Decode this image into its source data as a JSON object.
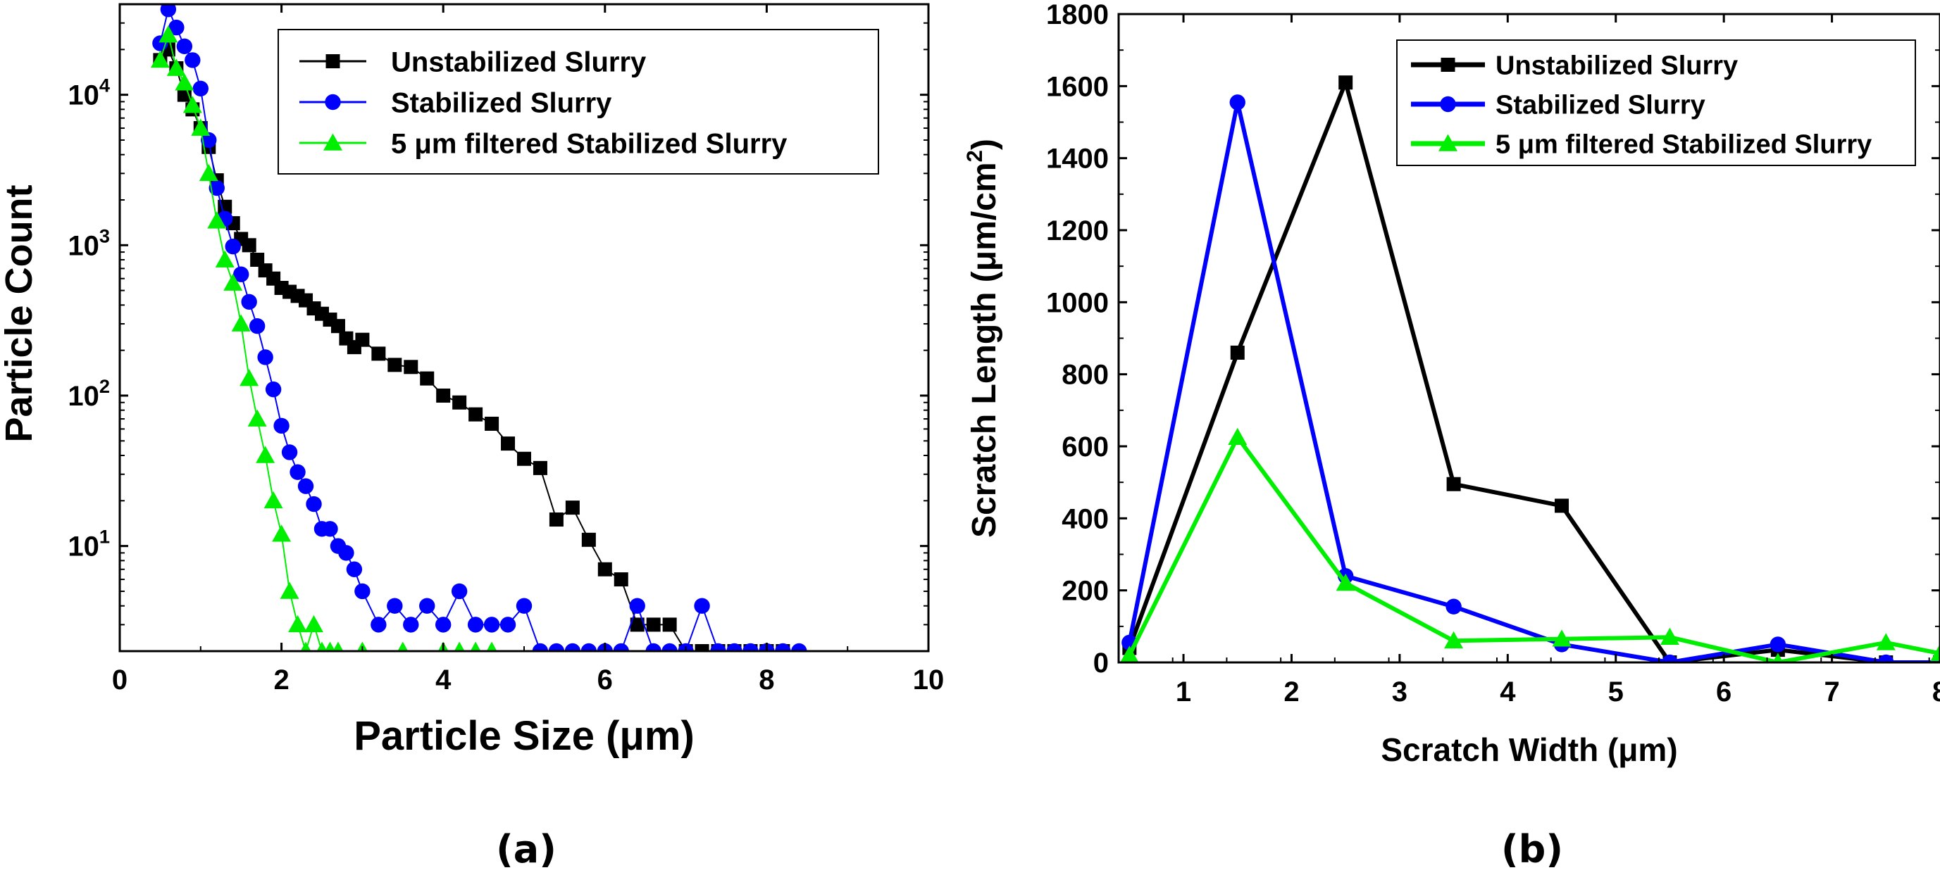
{
  "chart_data": [
    {
      "id": "a",
      "panel_label": "(a)",
      "type": "scatter",
      "xlabel": "Particle Size (μm)",
      "ylabel": "Particle Count",
      "xscale": "linear",
      "yscale": "log",
      "xlim": [
        0,
        10
      ],
      "ylim": [
        2,
        40000
      ],
      "x_ticks": [
        0,
        2,
        4,
        6,
        8,
        10
      ],
      "x_tick_labels": [
        "0",
        "2",
        "4",
        "6",
        "8",
        "10"
      ],
      "y_ticks": [
        10,
        100,
        1000,
        10000
      ],
      "y_tick_labels": [
        {
          "base": "10",
          "exp": "1"
        },
        {
          "base": "10",
          "exp": "2"
        },
        {
          "base": "10",
          "exp": "3"
        },
        {
          "base": "10",
          "exp": "4"
        }
      ],
      "legend_position": "top-right",
      "series": [
        {
          "name": "Unstabilized Slurry",
          "color": "#000000",
          "marker": "square",
          "x": [
            0.5,
            0.6,
            0.7,
            0.8,
            0.9,
            1.0,
            1.1,
            1.2,
            1.3,
            1.4,
            1.5,
            1.6,
            1.7,
            1.8,
            1.9,
            2.0,
            2.1,
            2.2,
            2.3,
            2.4,
            2.5,
            2.6,
            2.7,
            2.8,
            2.9,
            3.0,
            3.2,
            3.4,
            3.6,
            3.8,
            4.0,
            4.2,
            4.4,
            4.6,
            4.8,
            5.0,
            5.2,
            5.4,
            5.6,
            5.8,
            6.0,
            6.2,
            6.4,
            6.6,
            6.8,
            7.0,
            7.2,
            7.4,
            7.6,
            7.8,
            8.0,
            8.2
          ],
          "y": [
            17000,
            20000,
            15000,
            10000,
            8000,
            6000,
            4500,
            2700,
            1800,
            1400,
            1100,
            1000,
            800,
            680,
            600,
            520,
            490,
            460,
            430,
            380,
            350,
            320,
            290,
            240,
            210,
            235,
            190,
            160,
            155,
            130,
            100,
            90,
            75,
            65,
            48,
            38,
            33,
            15,
            18,
            11,
            7,
            6,
            3,
            3,
            3,
            2,
            2,
            2,
            2,
            2,
            2,
            2
          ]
        },
        {
          "name": "Stabilized Slurry",
          "color": "#0000ff",
          "marker": "circle",
          "x": [
            0.5,
            0.6,
            0.7,
            0.8,
            0.9,
            1.0,
            1.1,
            1.2,
            1.3,
            1.4,
            1.5,
            1.6,
            1.7,
            1.8,
            1.9,
            2.0,
            2.1,
            2.2,
            2.3,
            2.4,
            2.5,
            2.6,
            2.7,
            2.8,
            2.9,
            3.0,
            3.2,
            3.4,
            3.6,
            3.8,
            4.0,
            4.2,
            4.4,
            4.6,
            4.8,
            5.0,
            5.2,
            5.4,
            5.6,
            5.8,
            6.0,
            6.2,
            6.4,
            6.6,
            6.8,
            7.0,
            7.2,
            7.4,
            7.6,
            7.8,
            8.0,
            8.2,
            8.4
          ],
          "y": [
            22000,
            37000,
            28000,
            21000,
            17000,
            11000,
            5000,
            2400,
            1500,
            980,
            640,
            420,
            290,
            180,
            110,
            63,
            42,
            31,
            25,
            19,
            13,
            13,
            10,
            9,
            7,
            5,
            3,
            4,
            3,
            4,
            3,
            5,
            3,
            3,
            3,
            4,
            2,
            2,
            2,
            2,
            2,
            2,
            4,
            2,
            2,
            2,
            4,
            2,
            2,
            2,
            2,
            2,
            2
          ]
        },
        {
          "name": "5 μm filtered Stabilized Slurry",
          "color": "#00ee00",
          "marker": "triangle",
          "x": [
            0.5,
            0.6,
            0.7,
            0.8,
            0.9,
            1.0,
            1.1,
            1.2,
            1.3,
            1.4,
            1.5,
            1.6,
            1.7,
            1.8,
            1.9,
            2.0,
            2.1,
            2.2,
            2.3,
            2.4,
            2.5,
            2.6,
            2.7,
            3.0,
            3.5,
            4.0,
            4.2,
            4.4,
            4.6
          ],
          "y": [
            17000,
            25000,
            15000,
            12000,
            8500,
            6000,
            3000,
            1450,
            800,
            560,
            300,
            130,
            70,
            40,
            20,
            12,
            5,
            3,
            2,
            3,
            2,
            2,
            2,
            2,
            2,
            2,
            2,
            2,
            2
          ]
        }
      ]
    },
    {
      "id": "b",
      "panel_label": "(b)",
      "type": "line",
      "xlabel": "Scratch Width (μm)",
      "ylabel_prefix": "Scratch Length (μm/cm",
      "ylabel_sup": "2",
      "ylabel_suffix": ")",
      "xlim": [
        0.4,
        8
      ],
      "ylim": [
        0,
        1800
      ],
      "x_ticks": [
        1,
        2,
        3,
        4,
        5,
        6,
        7,
        8
      ],
      "x_tick_labels": [
        "1",
        "2",
        "3",
        "4",
        "5",
        "6",
        "7",
        "8"
      ],
      "y_ticks": [
        0,
        200,
        400,
        600,
        800,
        1000,
        1200,
        1400,
        1600,
        1800
      ],
      "y_tick_labels": [
        "0",
        "200",
        "400",
        "600",
        "800",
        "1000",
        "1200",
        "1400",
        "1600",
        "1800"
      ],
      "legend_position": "top-right",
      "series": [
        {
          "name": "Unstabilized Slurry",
          "color": "#000000",
          "marker": "square",
          "x": [
            0.5,
            1.5,
            2.5,
            3.5,
            4.5,
            5.5,
            6.5,
            7.5,
            8.0
          ],
          "y": [
            40,
            860,
            1610,
            495,
            435,
            0,
            35,
            0,
            0
          ]
        },
        {
          "name": "Stabilized Slurry",
          "color": "#0000ff",
          "marker": "circle",
          "x": [
            0.5,
            1.5,
            2.5,
            3.5,
            4.5,
            5.5,
            6.5,
            7.5,
            8.0
          ],
          "y": [
            55,
            1555,
            240,
            155,
            50,
            0,
            50,
            0,
            0
          ]
        },
        {
          "name": "5 μm filtered Stabilized Slurry",
          "color": "#00ee00",
          "marker": "triangle",
          "x": [
            0.5,
            1.5,
            2.5,
            3.5,
            4.5,
            5.5,
            6.5,
            7.5,
            8.0
          ],
          "y": [
            20,
            625,
            220,
            60,
            65,
            70,
            0,
            55,
            25
          ]
        }
      ]
    }
  ]
}
